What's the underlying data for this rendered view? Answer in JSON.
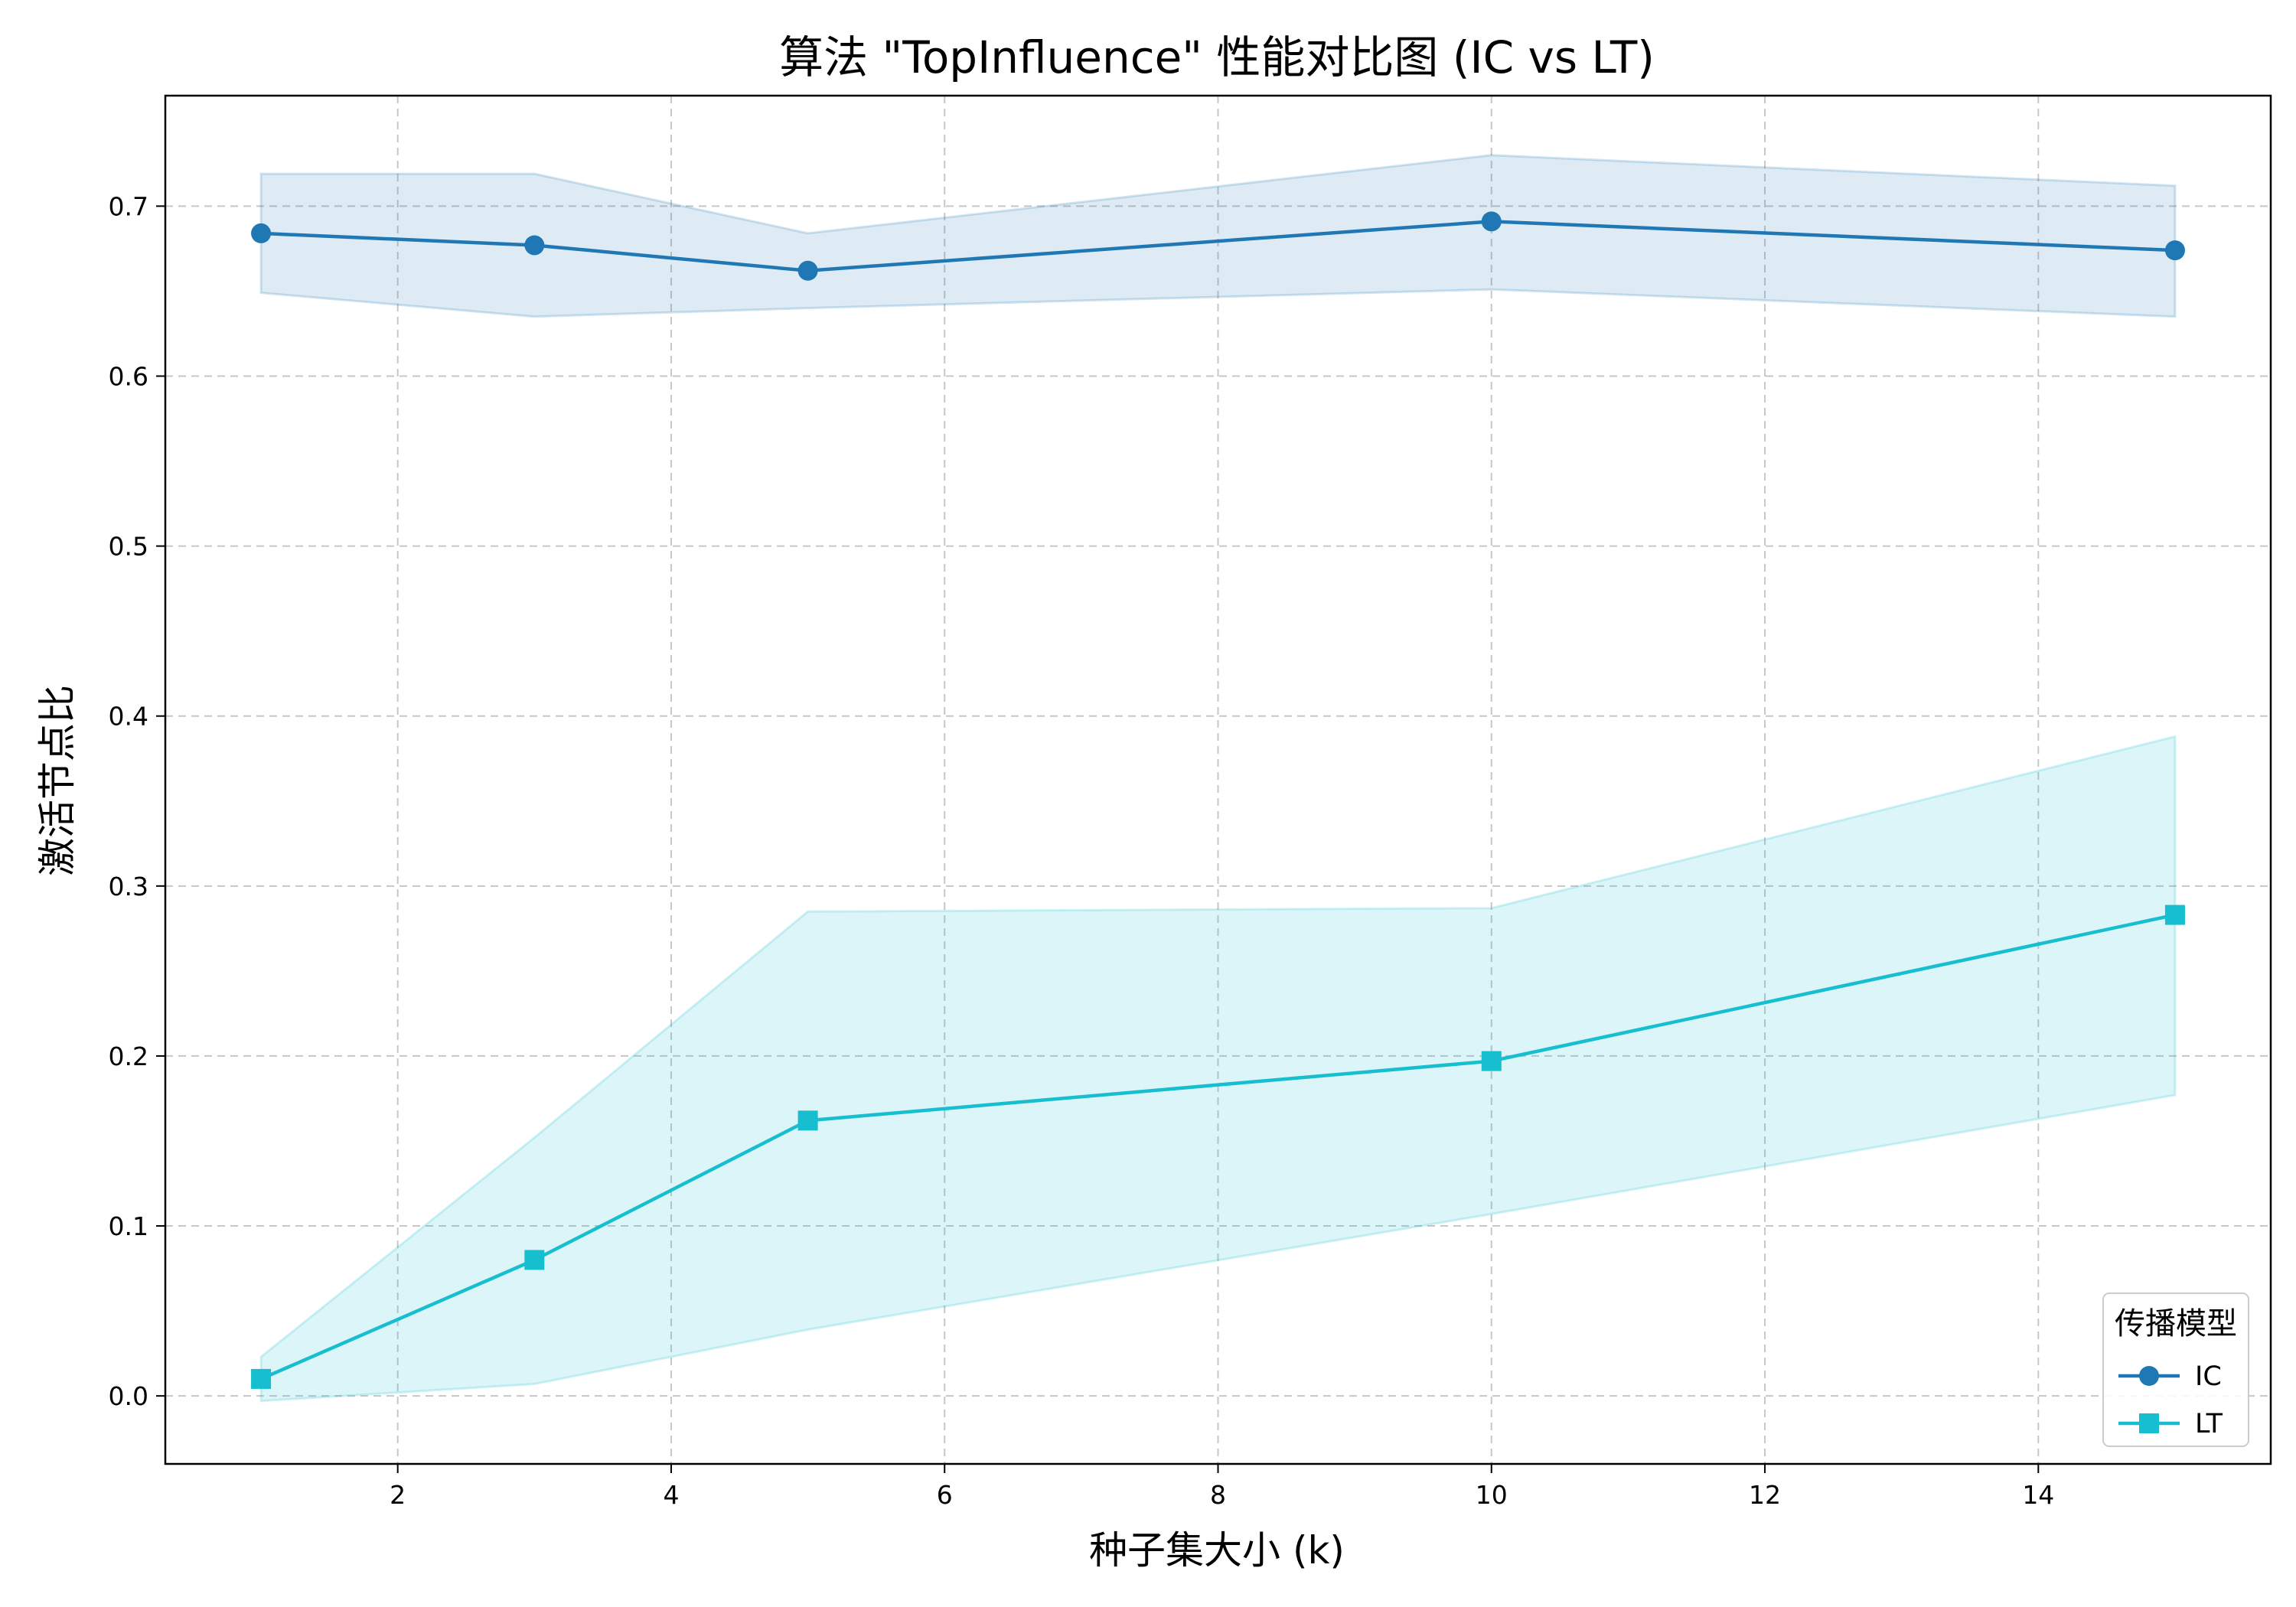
{
  "chart_data": {
    "type": "line",
    "title": "算法 \"TopInfluence\" 性能对比图 (IC vs LT)",
    "xlabel": "种子集大小 (k)",
    "ylabel": "激活节点比",
    "xlim": [
      0.3,
      15.7
    ],
    "ylim": [
      -0.04,
      0.765
    ],
    "xticks": [
      2,
      4,
      6,
      8,
      10,
      12,
      14
    ],
    "yticks": [
      0.0,
      0.1,
      0.2,
      0.3,
      0.4,
      0.5,
      0.6,
      0.7
    ],
    "grid": true,
    "legend": {
      "title": "传播模型",
      "position": "lower-right"
    },
    "series": [
      {
        "name": "IC",
        "color": "#1f77b4",
        "marker": "circle",
        "x": [
          1,
          3,
          5,
          10,
          15
        ],
        "y": [
          0.684,
          0.677,
          0.662,
          0.691,
          0.674
        ],
        "upper": [
          0.719,
          0.719,
          0.684,
          0.73,
          0.712
        ],
        "lower": [
          0.649,
          0.635,
          0.64,
          0.651,
          0.635
        ]
      },
      {
        "name": "LT",
        "color": "#17becf",
        "marker": "square",
        "x": [
          1,
          3,
          5,
          10,
          15
        ],
        "y": [
          0.01,
          0.08,
          0.162,
          0.197,
          0.283
        ],
        "upper": [
          0.023,
          0.152,
          0.285,
          0.287,
          0.388
        ],
        "lower": [
          -0.003,
          0.007,
          0.039,
          0.107,
          0.177
        ]
      }
    ]
  }
}
